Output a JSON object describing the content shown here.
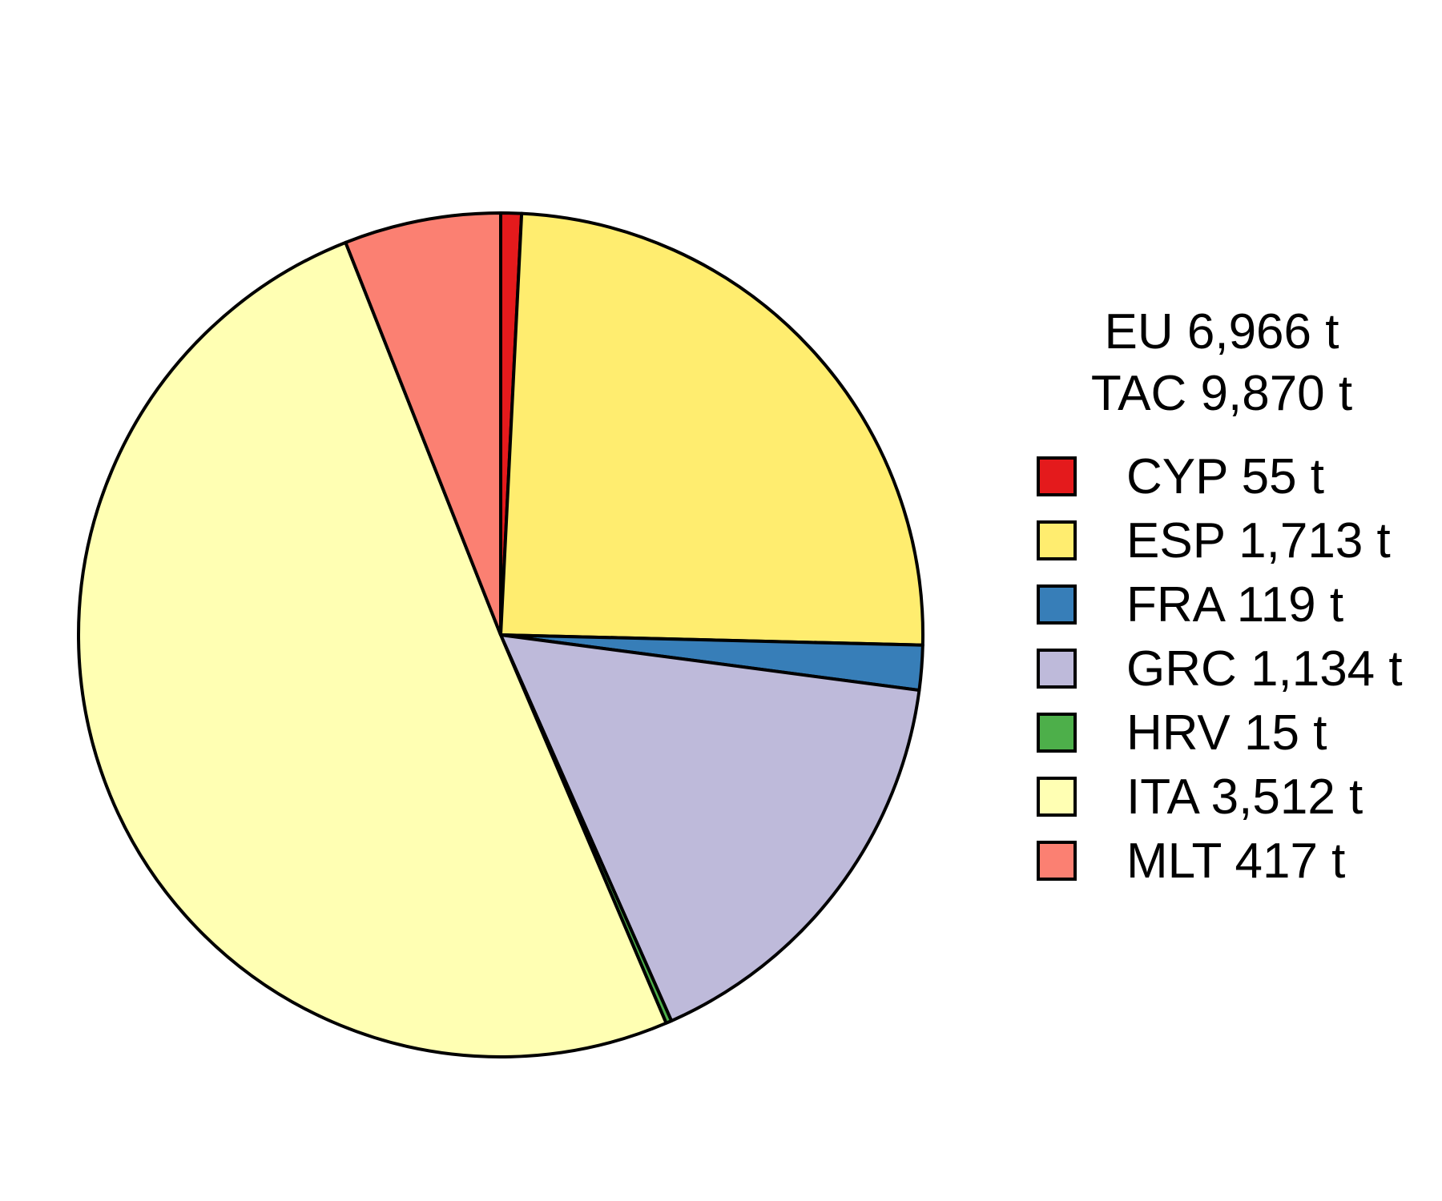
{
  "chart_data": {
    "type": "pie",
    "title_lines": [
      "EU 6,966 t",
      "TAC 9,870 t"
    ],
    "slices": [
      {
        "label": "CYP 55 t",
        "value": 55,
        "color": "#e41a1c"
      },
      {
        "label": "ESP 1,713 t",
        "value": 1713,
        "color": "#ffed6f"
      },
      {
        "label": "FRA 119 t",
        "value": 119,
        "color": "#377eb8"
      },
      {
        "label": "GRC 1,134 t",
        "value": 1134,
        "color": "#bebada"
      },
      {
        "label": "HRV 15 t",
        "value": 15,
        "color": "#4daf4a"
      },
      {
        "label": "ITA 3,512 t",
        "value": 3512,
        "color": "#ffffb3"
      },
      {
        "label": "MLT 417 t",
        "value": 417,
        "color": "#fb8072"
      }
    ],
    "direction": "clockwise",
    "start": "top",
    "legend_position": "right"
  }
}
